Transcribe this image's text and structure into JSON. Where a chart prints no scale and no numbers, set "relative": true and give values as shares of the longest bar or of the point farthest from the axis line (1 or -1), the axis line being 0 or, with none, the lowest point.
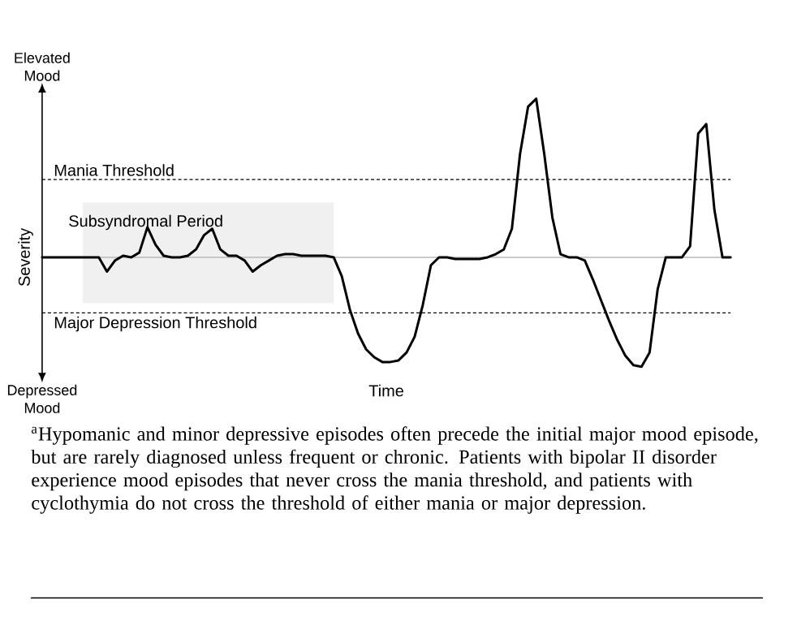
{
  "chart_data": {
    "type": "line",
    "relative": true,
    "xlabel": "Time",
    "ylabel": "Severity",
    "marker": "none",
    "line_style": "solid",
    "color": "#000000",
    "categories": [
      null,
      null,
      null,
      null,
      null,
      null,
      null,
      null,
      null,
      null,
      null,
      null,
      null,
      null,
      null,
      null,
      null,
      null,
      null,
      null,
      null,
      null,
      null,
      null,
      null,
      null,
      null,
      null,
      null,
      null,
      null,
      null,
      null,
      null,
      null,
      null,
      null,
      null,
      null,
      null,
      null,
      null,
      null,
      null,
      null,
      null,
      null,
      null,
      null,
      null,
      null,
      null,
      null,
      null,
      null,
      null,
      null,
      null,
      null,
      null,
      null,
      null,
      null,
      null,
      null,
      null,
      null,
      null,
      null,
      null,
      null,
      null,
      null,
      null,
      null,
      null,
      null,
      null,
      null,
      null,
      null,
      null,
      null,
      null,
      null,
      null
    ],
    "values": [
      0,
      0,
      0,
      0,
      0,
      0,
      0,
      0,
      -0.09,
      -0.02,
      0.01,
      0,
      0.03,
      0.19,
      0.08,
      0.01,
      0,
      0,
      0.01,
      0.05,
      0.14,
      0.18,
      0.05,
      0.01,
      0.01,
      -0.02,
      -0.09,
      -0.05,
      -0.02,
      0.01,
      0.02,
      0.02,
      0.01,
      0.01,
      0.01,
      0.01,
      0,
      -0.12,
      -0.33,
      -0.48,
      -0.58,
      -0.63,
      -0.66,
      -0.66,
      -0.65,
      -0.6,
      -0.5,
      -0.3,
      -0.05,
      0,
      0,
      -0.01,
      -0.01,
      -0.01,
      -0.01,
      0,
      0.02,
      0.05,
      0.18,
      0.65,
      0.95,
      1.0,
      0.65,
      0.25,
      0.02,
      0,
      0,
      -0.02,
      -0.14,
      -0.27,
      -0.4,
      -0.52,
      -0.62,
      -0.68,
      -0.69,
      -0.6,
      -0.2,
      0,
      0,
      0,
      0.07,
      0.78,
      0.84,
      0.3,
      0,
      0
    ],
    "ref_lines": [
      {
        "axis": "y",
        "value": 0.49,
        "label": "Mania Threshold",
        "line_style": "dashed",
        "color": "#000000"
      },
      {
        "axis": "y",
        "value": -0.35,
        "label": "Major Depression Threshold",
        "line_style": "dashed",
        "color": "#000000"
      }
    ],
    "annotations": [
      "Elevated Mood",
      "Depressed Mood",
      "Subsyndromal Period",
      "$^{a}$Hypomanic and minor depressive episodes often precede the initial major mood episode, but are rarely diagnosed unless frequent or chronic. Patients with bipolar II disorder experience mood episodes that never cross the mania threshold, and patients with cyclothymia do not cross the threshold of either mania or major depression."
    ]
  }
}
